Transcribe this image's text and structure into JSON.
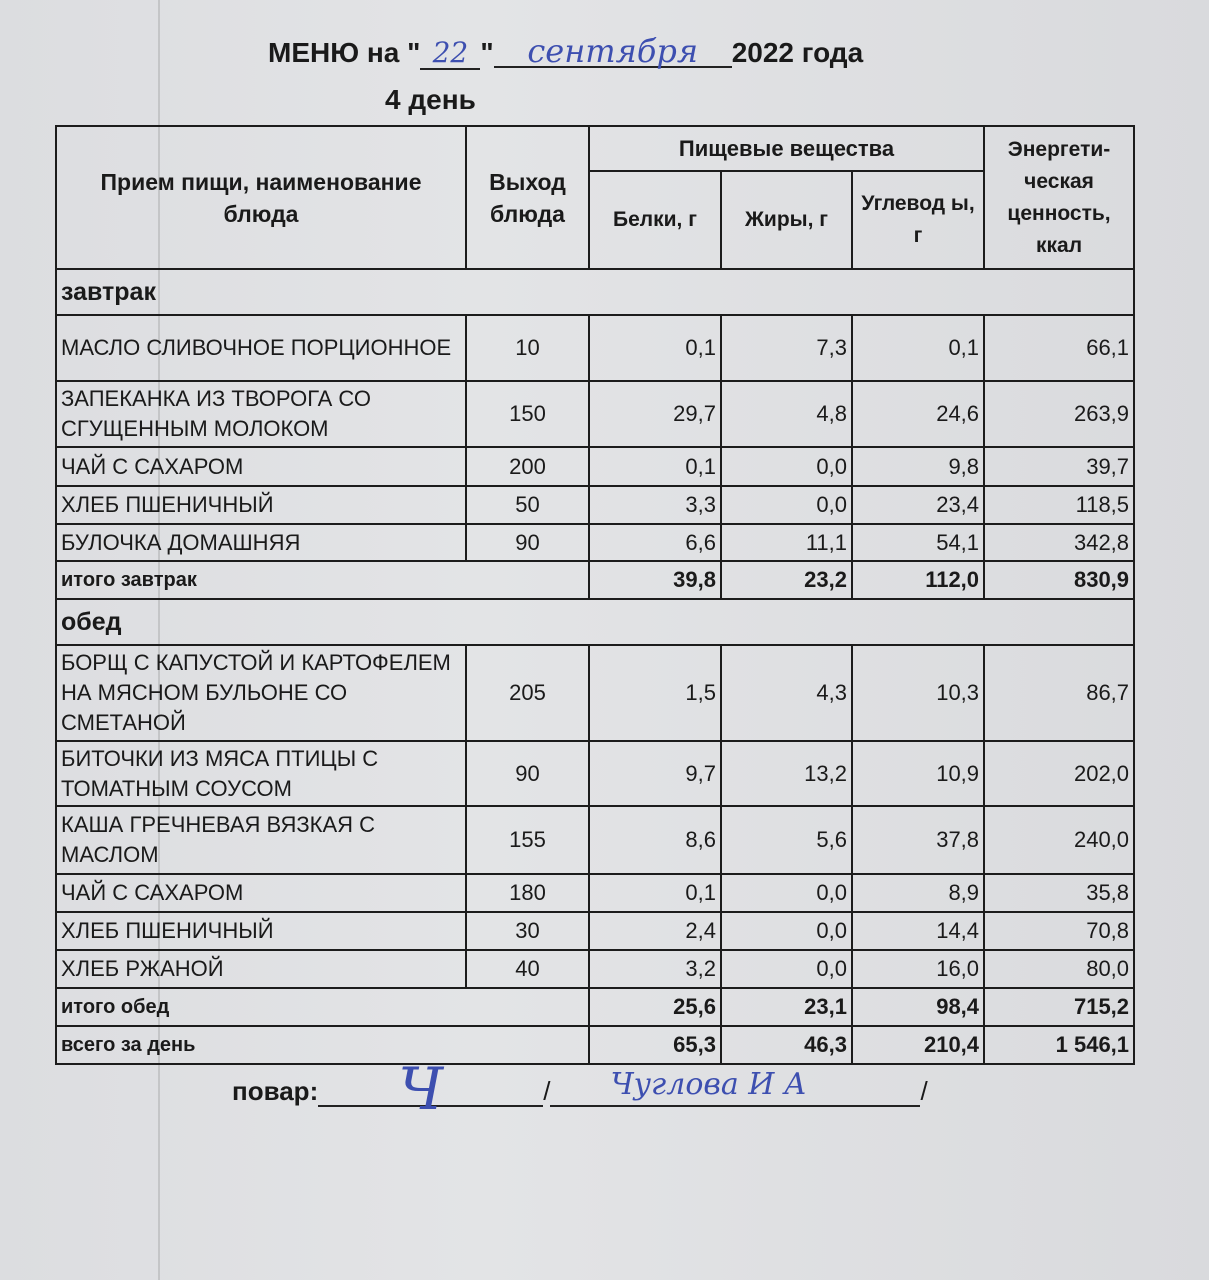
{
  "header": {
    "title_prefix": "МЕНЮ на \"",
    "day_handwritten": "22",
    "quote_mid": "\"",
    "month_handwritten": "сентября",
    "title_suffix": "2022 года",
    "day_label": "4 день"
  },
  "table": {
    "headers": {
      "meal": "Прием пищи, наименование блюда",
      "yield": "Выход блюда",
      "nutrients": "Пищевые вещества",
      "protein": "Белки, г",
      "fat": "Жиры, г",
      "carbs": "Углевод ы, г",
      "energy": "Энергети-ческая ценность, ккал"
    },
    "rows": [
      {
        "type": "section",
        "name": "завтрак"
      },
      {
        "type": "item",
        "name": " МАСЛО  СЛИВОЧНОЕ ПОРЦИОННОЕ",
        "yield": "10",
        "protein": "0,1",
        "fat": "7,3",
        "carbs": "0,1",
        "energy": "66,1",
        "h": 66
      },
      {
        "type": "item",
        "name": "ЗАПЕКАНКА ИЗ ТВОРОГА СО СГУЩЕННЫМ  МОЛОКОМ",
        "yield": "150",
        "protein": "29,7",
        "fat": "4,8",
        "carbs": "24,6",
        "energy": "263,9",
        "h": 66
      },
      {
        "type": "item",
        "name": "ЧАЙ С САХАРОМ",
        "yield": "200",
        "protein": "0,1",
        "fat": "0,0",
        "carbs": "9,8",
        "energy": "39,7",
        "h": 39
      },
      {
        "type": "item",
        "name": "ХЛЕБ ПШЕНИЧНЫЙ",
        "yield": "50",
        "protein": "3,3",
        "fat": "0,0",
        "carbs": "23,4",
        "energy": "118,5",
        "h": 38
      },
      {
        "type": "item",
        "name": "БУЛОЧКА ДОМАШНЯЯ",
        "yield": "90",
        "protein": "6,6",
        "fat": "11,1",
        "carbs": "54,1",
        "energy": "342,8",
        "h": 37
      },
      {
        "type": "total",
        "name": "итого завтрак",
        "protein": "39,8",
        "fat": "23,2",
        "carbs": "112,0",
        "energy": "830,9"
      },
      {
        "type": "section",
        "name": "обед"
      },
      {
        "type": "item",
        "name": "БОРЩ С КАПУСТОЙ И КАРТОФЕЛЕМ НА МЯСНОМ БУЛЬОНЕ СО СМЕТАНОЙ",
        "yield": "205",
        "protein": "1,5",
        "fat": "4,3",
        "carbs": "10,3",
        "energy": "86,7",
        "h": 96
      },
      {
        "type": "item",
        "name": "БИТОЧКИ ИЗ  МЯСА  ПТИЦЫ С ТОМАТНЫМ  СОУСОМ",
        "yield": "90",
        "protein": "9,7",
        "fat": "13,2",
        "carbs": "10,9",
        "energy": "202,0",
        "h": 65
      },
      {
        "type": "item",
        "name": "КАША ГРЕЧНЕВАЯ ВЯЗКАЯ С МАСЛОМ",
        "yield": "155",
        "protein": "8,6",
        "fat": "5,6",
        "carbs": "37,8",
        "energy": "240,0",
        "h": 68
      },
      {
        "type": "item",
        "name": "ЧАЙ С САХАРОМ",
        "yield": "180",
        "protein": "0,1",
        "fat": "0,0",
        "carbs": "8,9",
        "energy": "35,8",
        "h": 38
      },
      {
        "type": "item",
        "name": "ХЛЕБ ПШЕНИЧНЫЙ",
        "yield": "30",
        "protein": "2,4",
        "fat": "0,0",
        "carbs": "14,4",
        "energy": "70,8",
        "h": 38
      },
      {
        "type": "item",
        "name": "ХЛЕБ РЖАНОЙ",
        "yield": "40",
        "protein": "3,2",
        "fat": "0,0",
        "carbs": "16,0",
        "energy": "80,0",
        "h": 38
      },
      {
        "type": "total",
        "name": "итого обед",
        "protein": "25,6",
        "fat": "23,1",
        "carbs": "98,4",
        "energy": "715,2"
      },
      {
        "type": "total",
        "name": "всего за день",
        "protein": "65,3",
        "fat": "46,3",
        "carbs": "210,4",
        "energy": "1 546,1"
      }
    ]
  },
  "footer": {
    "cook_label": "повар:",
    "separator": "/",
    "signature": "Ч",
    "cook_name_handwritten": "Чуглова И А"
  }
}
